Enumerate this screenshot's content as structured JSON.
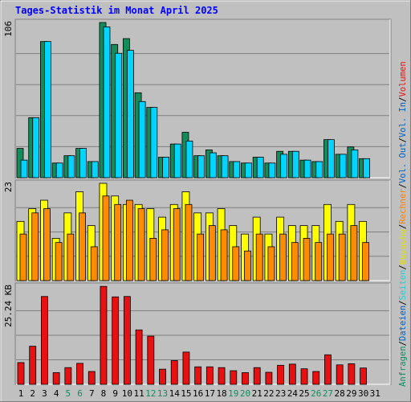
{
  "title": "Tages-Statistik im Monat April 2025",
  "colors": {
    "background": "#c0c0c0",
    "panel": "#c0c0c0",
    "grid": "#808080",
    "title": "#0000ff",
    "hits": "#138c5c",
    "files": "#00d4ff",
    "pages": "#22e0e0",
    "visits": "#ffff00",
    "sites": "#ff8c00",
    "kbytes": "#e81010",
    "weekend": "#138c5c",
    "weekday": "#000000"
  },
  "right_legend": [
    {
      "text": "Anfragen",
      "color": "#138c5c"
    },
    {
      "text": "/",
      "color": "#000000"
    },
    {
      "text": "Dateien",
      "color": "#0060c0"
    },
    {
      "text": "/",
      "color": "#000000"
    },
    {
      "text": "Seiten",
      "color": "#20d0d0"
    },
    {
      "text": "/",
      "color": "#000000"
    },
    {
      "text": "Besuche",
      "color": "#e0e000"
    },
    {
      "text": "/",
      "color": "#000000"
    },
    {
      "text": "Rechner",
      "color": "#ff8000"
    },
    {
      "text": "/",
      "color": "#000000"
    },
    {
      "text": "Vol. Out",
      "color": "#0060c0"
    },
    {
      "text": "/",
      "color": "#000000"
    },
    {
      "text": "Vol. In",
      "color": "#0060c0"
    },
    {
      "text": "/",
      "color": "#000000"
    },
    {
      "text": "Volumen",
      "color": "#e81010"
    }
  ],
  "chart_data": [
    {
      "type": "bar",
      "panel": "top",
      "max_label": "106",
      "ylim": [
        0,
        106
      ],
      "categories": [
        "1",
        "2",
        "3",
        "4",
        "5",
        "6",
        "7",
        "8",
        "9",
        "10",
        "11",
        "12",
        "13",
        "14",
        "15",
        "16",
        "17",
        "18",
        "19",
        "20",
        "21",
        "22",
        "23",
        "24",
        "25",
        "26",
        "27",
        "28",
        "29",
        "30",
        "31"
      ],
      "weekend_days": [
        "5",
        "6",
        "12",
        "13",
        "19",
        "20",
        "26",
        "27"
      ],
      "series": [
        {
          "name": "Anfragen",
          "values": [
            20,
            41,
            93,
            10,
            15,
            20,
            11,
            106,
            91,
            95,
            58,
            48,
            14,
            23,
            31,
            15,
            19,
            15,
            11,
            10,
            14,
            10,
            18,
            18,
            12,
            11,
            26,
            16,
            21,
            13,
            0
          ]
        },
        {
          "name": "Dateien",
          "values": [
            12,
            41,
            93,
            10,
            15,
            20,
            11,
            103,
            85,
            87,
            52,
            48,
            14,
            23,
            25,
            15,
            17,
            15,
            11,
            10,
            14,
            10,
            16,
            18,
            12,
            11,
            26,
            16,
            19,
            13,
            0
          ]
        },
        {
          "name": "Seiten",
          "values": [
            0,
            0,
            0,
            0,
            0,
            0,
            0,
            0,
            0,
            0,
            0,
            0,
            0,
            0,
            0,
            0,
            0,
            0,
            0,
            0,
            0,
            0,
            0,
            0,
            0,
            0,
            0,
            0,
            0,
            0,
            0
          ]
        }
      ]
    },
    {
      "type": "bar",
      "panel": "middle",
      "max_label": "23",
      "ylim": [
        0,
        23
      ],
      "categories": [
        "1",
        "2",
        "3",
        "4",
        "5",
        "6",
        "7",
        "8",
        "9",
        "10",
        "11",
        "12",
        "13",
        "14",
        "15",
        "16",
        "17",
        "18",
        "19",
        "20",
        "21",
        "22",
        "23",
        "24",
        "25",
        "26",
        "27",
        "28",
        "29",
        "30",
        "31"
      ],
      "series": [
        {
          "name": "Besuche",
          "values": [
            14,
            17,
            19,
            10,
            16,
            21,
            13,
            23,
            20,
            18,
            18,
            17,
            15,
            18,
            21,
            16,
            16,
            17,
            13,
            11,
            15,
            11,
            15,
            13,
            13,
            13,
            18,
            14,
            18,
            14,
            0
          ]
        },
        {
          "name": "Rechner",
          "values": [
            11,
            16,
            17,
            9,
            11,
            16,
            8,
            20,
            18,
            19,
            17,
            10,
            12,
            17,
            18,
            11,
            13,
            12,
            8,
            7,
            11,
            8,
            11,
            9,
            10,
            9,
            11,
            11,
            13,
            9,
            0
          ]
        }
      ]
    },
    {
      "type": "bar",
      "panel": "bottom",
      "max_label": "25.24 KB",
      "ylabel": "KB",
      "ylim": [
        0,
        25.24
      ],
      "categories": [
        "1",
        "2",
        "3",
        "4",
        "5",
        "6",
        "7",
        "8",
        "9",
        "10",
        "11",
        "12",
        "13",
        "14",
        "15",
        "16",
        "17",
        "18",
        "19",
        "20",
        "21",
        "22",
        "23",
        "24",
        "25",
        "26",
        "27",
        "28",
        "29",
        "30",
        "31"
      ],
      "series": [
        {
          "name": "Volumen",
          "values": [
            5.6,
            9.8,
            22.6,
            3.0,
            4.3,
            5.4,
            3.3,
            25.2,
            22.5,
            22.6,
            14.0,
            12.4,
            3.9,
            6.1,
            8.3,
            4.5,
            4.5,
            4.3,
            3.5,
            3.0,
            4.3,
            3.1,
            4.9,
            5.2,
            4.0,
            3.3,
            7.6,
            5.0,
            5.3,
            4.2,
            0
          ]
        }
      ]
    }
  ]
}
